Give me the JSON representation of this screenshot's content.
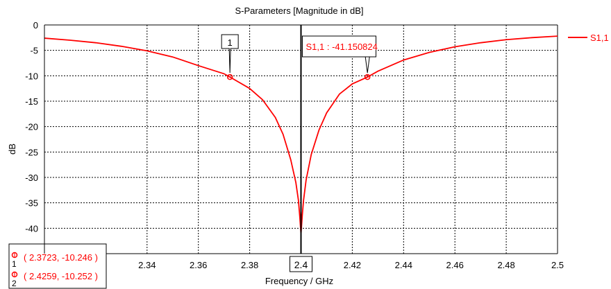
{
  "chart_data": {
    "type": "line",
    "title": "S-Parameters [Magnitude in dB]",
    "xlabel": "Frequency / GHz",
    "ylabel": "dB",
    "xlim": [
      2.3,
      2.5
    ],
    "ylim": [
      -45,
      0
    ],
    "x_ticks": [
      "2.34",
      "2.36",
      "2.38",
      "2.4",
      "2.42",
      "2.44",
      "2.46",
      "2.48",
      "2.5"
    ],
    "x_tick_values": [
      2.34,
      2.36,
      2.38,
      2.4,
      2.42,
      2.44,
      2.46,
      2.48,
      2.5
    ],
    "y_ticks": [
      "0",
      "-5",
      "-10",
      "-15",
      "-20",
      "-25",
      "-30",
      "-35",
      "-40"
    ],
    "y_tick_values": [
      0,
      -5,
      -10,
      -15,
      -20,
      -25,
      -30,
      -35,
      -40
    ],
    "grid": true,
    "legend_position": "top-right",
    "series": [
      {
        "name": "S1,1",
        "color": "#ff0000",
        "x": [
          2.3,
          2.31,
          2.32,
          2.33,
          2.34,
          2.35,
          2.36,
          2.37,
          2.3723,
          2.38,
          2.385,
          2.39,
          2.393,
          2.396,
          2.398,
          2.399,
          2.3995,
          2.4,
          2.4005,
          2.401,
          2.402,
          2.404,
          2.407,
          2.41,
          2.415,
          2.42,
          2.4259,
          2.43,
          2.44,
          2.45,
          2.46,
          2.47,
          2.48,
          2.49,
          2.5
        ],
        "y": [
          -2.6,
          -3.0,
          -3.5,
          -4.2,
          -5.1,
          -6.3,
          -8.0,
          -9.6,
          -10.246,
          -12.5,
          -14.7,
          -18.2,
          -21.5,
          -26.5,
          -31.0,
          -34.5,
          -37.5,
          -41.150824,
          -37.5,
          -34.5,
          -30.5,
          -25.5,
          -20.7,
          -17.3,
          -13.6,
          -11.6,
          -10.252,
          -9.1,
          -6.9,
          -5.4,
          -4.3,
          -3.5,
          -2.9,
          -2.5,
          -2.2
        ]
      }
    ],
    "cursor_x": 2.4,
    "cursor_label": "2.4",
    "markers": [
      {
        "id": "1",
        "x": 2.3723,
        "y": -10.246,
        "text": "( 2.3723, -10.246 )"
      },
      {
        "id": "2",
        "x": 2.4259,
        "y": -10.252,
        "text": "( 2.4259, -10.252 )"
      }
    ],
    "minimum_annotation": "S1,1 : -41.150824",
    "minimum_value": -41.150824,
    "marker1_flag": "1"
  }
}
